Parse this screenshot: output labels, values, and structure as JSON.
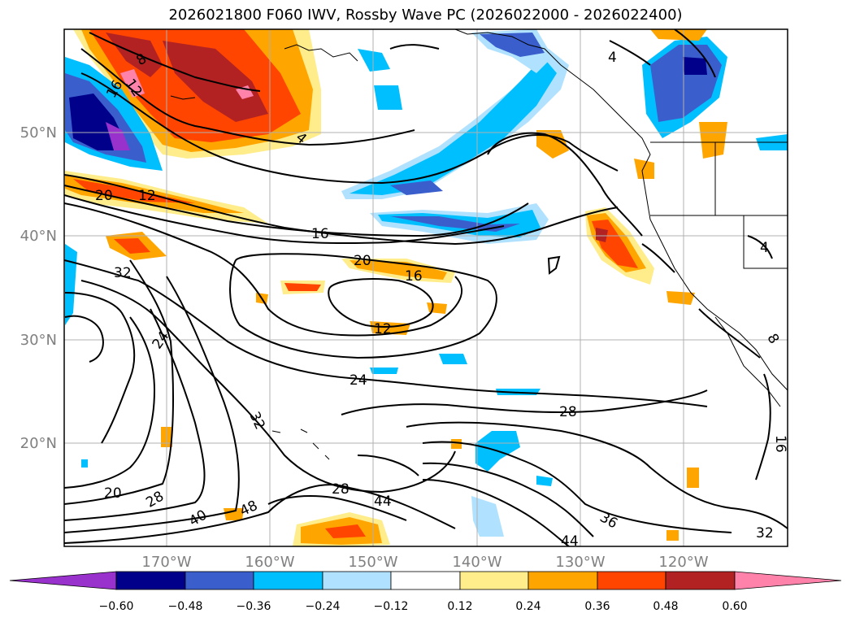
{
  "title": "2026021800 F060 IWV, Rossby Wave PC (2026022000 - 2026022400)",
  "map": {
    "lon_ticks": [
      "170°W",
      "160°W",
      "150°W",
      "140°W",
      "130°W",
      "120°W"
    ],
    "lat_ticks": [
      "50°N",
      "40°N",
      "30°N",
      "20°N"
    ],
    "contour_labels": [
      "8",
      "16",
      "12",
      "4",
      "20",
      "12",
      "16",
      "32",
      "20",
      "16",
      "12",
      "24",
      "24",
      "28",
      "32",
      "20",
      "28",
      "40",
      "48",
      "28",
      "44",
      "44",
      "36",
      "32",
      "16",
      "8",
      "4",
      "4"
    ]
  },
  "colorbar": {
    "ticks": [
      "−0.60",
      "−0.48",
      "−0.36",
      "−0.24",
      "−0.12",
      "0.12",
      "0.24",
      "0.36",
      "0.48",
      "0.60"
    ],
    "colors": [
      "#9932cc",
      "#00008b",
      "#3a5fcd",
      "#00bfff",
      "#b0e2ff",
      "#ffffff",
      "#ffec8b",
      "#ffa500",
      "#ff4500",
      "#b22222",
      "#ff82ab"
    ]
  }
}
